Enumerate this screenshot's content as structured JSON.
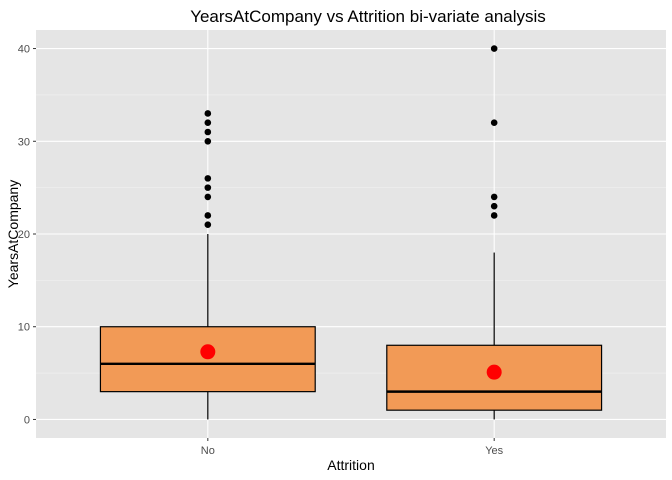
{
  "chart_data": {
    "type": "boxplot",
    "title": "YearsAtCompany vs Attrition bi-variate analysis",
    "xlabel": "Attrition",
    "ylabel": "YearsAtCompany",
    "categories": [
      "No",
      "Yes"
    ],
    "ylim": [
      -2,
      42
    ],
    "yticks": [
      0,
      10,
      20,
      30,
      40
    ],
    "grid": true,
    "box_fill": "#F29A56",
    "box_stroke": "#000000",
    "mean_color": "#FF0000",
    "outlier_color": "#000000",
    "panel_background": "#E5E5E5",
    "boxes": [
      {
        "category": "No",
        "whisker_low": 0,
        "q1": 3,
        "median": 6,
        "q3": 10,
        "whisker_high": 20,
        "mean": 7.3,
        "outliers": [
          21,
          22,
          24,
          25,
          26,
          30,
          31,
          32,
          33
        ]
      },
      {
        "category": "Yes",
        "whisker_low": 0,
        "q1": 1,
        "median": 3,
        "q3": 8,
        "whisker_high": 18,
        "mean": 5.1,
        "outliers": [
          22,
          23,
          24,
          32,
          40
        ]
      }
    ]
  }
}
